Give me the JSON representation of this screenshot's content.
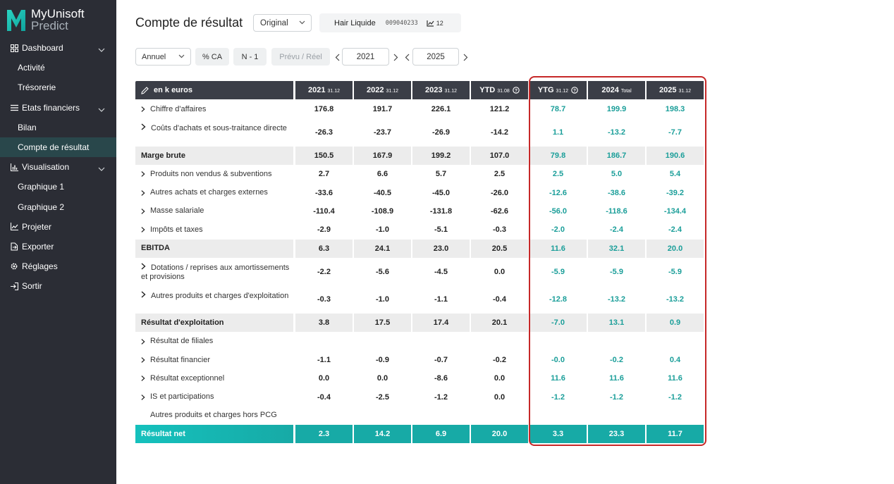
{
  "sidebar": {
    "brand_line1": "MyUnisoft",
    "brand_line2": "Predict",
    "items": [
      {
        "label": "Dashboard",
        "type": "top",
        "icon": "grid-icon",
        "chevron": true
      },
      {
        "label": "Activité",
        "type": "sub"
      },
      {
        "label": "Trésorerie",
        "type": "sub"
      },
      {
        "label": "Etats financiers",
        "type": "top",
        "icon": "list-icon",
        "chevron": true
      },
      {
        "label": "Bilan",
        "type": "sub"
      },
      {
        "label": "Compte de résultat",
        "type": "sub",
        "active": true
      },
      {
        "label": "Visualisation",
        "type": "top",
        "icon": "bar-chart-icon",
        "chevron": true
      },
      {
        "label": "Graphique 1",
        "type": "sub"
      },
      {
        "label": "Graphique 2",
        "type": "sub"
      },
      {
        "label": "Projeter",
        "type": "top",
        "icon": "trend-icon"
      },
      {
        "label": "Exporter",
        "type": "top",
        "icon": "export-icon"
      },
      {
        "label": "Réglages",
        "type": "top",
        "icon": "gear-icon"
      },
      {
        "label": "Sortir",
        "type": "top",
        "icon": "logout-icon"
      }
    ]
  },
  "header": {
    "title": "Compte de résultat",
    "version_select": "Original",
    "company_name": "Hair Liquide",
    "company_code": "009040233",
    "company_count": "12"
  },
  "toolbar": {
    "period_select": "Annuel",
    "pct_ca": "% CA",
    "n_minus_1": "N - 1",
    "prevu_reel": "Prévu / Réel",
    "year_from": "2021",
    "year_to": "2025"
  },
  "table": {
    "header_label": "en k euros",
    "columns": [
      {
        "label": "2021",
        "suffix": "31.12"
      },
      {
        "label": "2022",
        "suffix": "31.12"
      },
      {
        "label": "2023",
        "suffix": "31.12"
      },
      {
        "label": "YTD",
        "suffix": "31.08",
        "info": true
      },
      {
        "label": "YTG",
        "suffix": "31.12",
        "info": true
      },
      {
        "label": "2024",
        "suffix": "Total"
      },
      {
        "label": "2025",
        "suffix": "31.12"
      }
    ],
    "rows": [
      {
        "label": "Chiffre d'affaires",
        "kind": "norm",
        "arrow": true,
        "values": [
          "176.8",
          "191.7",
          "226.1",
          "121.2",
          "78.7",
          "199.9",
          "198.3"
        ]
      },
      {
        "label": "Coûts d'achats et sous-traitance directe",
        "kind": "norm",
        "arrow": true,
        "tall": true,
        "values": [
          "-26.3",
          "-23.7",
          "-26.9",
          "-14.2",
          "1.1",
          "-13.2",
          "-7.7"
        ]
      },
      {
        "label": "Marge brute",
        "kind": "sub",
        "values": [
          "150.5",
          "167.9",
          "199.2",
          "107.0",
          "79.8",
          "186.7",
          "190.6"
        ]
      },
      {
        "label": "Produits non vendus & subventions",
        "kind": "norm",
        "arrow": true,
        "values": [
          "2.7",
          "6.6",
          "5.7",
          "2.5",
          "2.5",
          "5.0",
          "5.4"
        ]
      },
      {
        "label": "Autres achats et charges externes",
        "kind": "norm",
        "arrow": true,
        "values": [
          "-33.6",
          "-40.5",
          "-45.0",
          "-26.0",
          "-12.6",
          "-38.6",
          "-39.2"
        ]
      },
      {
        "label": "Masse salariale",
        "kind": "norm",
        "arrow": true,
        "values": [
          "-110.4",
          "-108.9",
          "-131.8",
          "-62.6",
          "-56.0",
          "-118.6",
          "-134.4"
        ]
      },
      {
        "label": "Impôts et taxes",
        "kind": "norm",
        "arrow": true,
        "values": [
          "-2.9",
          "-1.0",
          "-5.1",
          "-0.3",
          "-2.0",
          "-2.4",
          "-2.4"
        ]
      },
      {
        "label": "EBITDA",
        "kind": "sub",
        "values": [
          "6.3",
          "24.1",
          "23.0",
          "20.5",
          "11.6",
          "32.1",
          "20.0"
        ]
      },
      {
        "label": "Dotations / reprises aux amortissements et provisions",
        "kind": "norm",
        "arrow": true,
        "tall": true,
        "values": [
          "-2.2",
          "-5.6",
          "-4.5",
          "0.0",
          "-5.9",
          "-5.9",
          "-5.9"
        ]
      },
      {
        "label": "Autres produits et charges d'exploitation",
        "kind": "norm",
        "arrow": true,
        "tall": true,
        "values": [
          "-0.3",
          "-1.0",
          "-1.1",
          "-0.4",
          "-12.8",
          "-13.2",
          "-13.2"
        ]
      },
      {
        "label": "Résultat d'exploitation",
        "kind": "sub",
        "values": [
          "3.8",
          "17.5",
          "17.4",
          "20.1",
          "-7.0",
          "13.1",
          "0.9"
        ]
      },
      {
        "label": "Résultat de filiales",
        "kind": "norm",
        "arrow": true,
        "values": [
          "",
          "",
          "",
          "",
          "",
          "",
          ""
        ]
      },
      {
        "label": "Résultat financier",
        "kind": "norm",
        "arrow": true,
        "values": [
          "-1.1",
          "-0.9",
          "-0.7",
          "-0.2",
          "-0.0",
          "-0.2",
          "0.4"
        ]
      },
      {
        "label": "Résultat exceptionnel",
        "kind": "norm",
        "arrow": true,
        "values": [
          "0.0",
          "0.0",
          "-8.6",
          "0.0",
          "11.6",
          "11.6",
          "11.6"
        ]
      },
      {
        "label": "IS et participations",
        "kind": "norm",
        "arrow": true,
        "values": [
          "-0.4",
          "-2.5",
          "-1.2",
          "0.0",
          "-1.2",
          "-1.2",
          "-1.2"
        ]
      },
      {
        "label": "Autres produits et charges hors PCG",
        "kind": "norm",
        "arrow": false,
        "values": [
          "",
          "",
          "",
          "",
          "",
          "",
          ""
        ]
      },
      {
        "label": "Résultat net",
        "kind": "net",
        "values": [
          "2.3",
          "14.2",
          "6.9",
          "20.0",
          "3.3",
          "23.3",
          "11.7"
        ]
      }
    ]
  },
  "colors": {
    "accent": "#17aaa6",
    "projected_text": "#1a9e99",
    "highlight_border": "#c62828",
    "sidebar_bg": "#2b2d35"
  }
}
